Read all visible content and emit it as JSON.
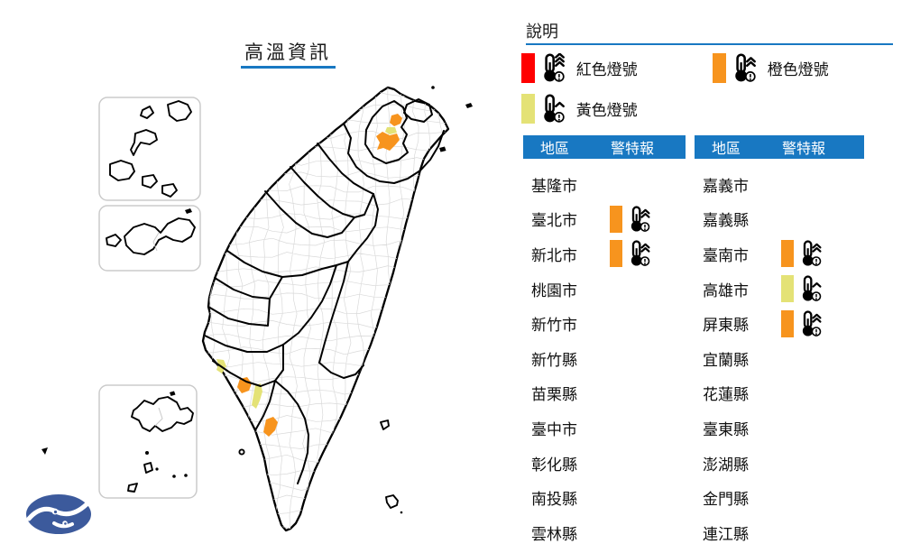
{
  "title": "高溫資訊",
  "colors": {
    "accent": "#1878c2",
    "red": "#ff0000",
    "orange": "#f7941e",
    "yellow": "#e4e276",
    "logo_blue": "#3c5a9c"
  },
  "legend": {
    "title": "說明",
    "items": [
      {
        "id": "red",
        "label": "紅色燈號",
        "color": "#ff0000",
        "level": 3
      },
      {
        "id": "orange",
        "label": "橙色燈號",
        "color": "#f7941e",
        "level": 2
      },
      {
        "id": "yellow",
        "label": "黃色燈號",
        "color": "#e4e276",
        "level": 1
      }
    ]
  },
  "warning_levels": {
    "red": 3,
    "orange": 2,
    "yellow": 1
  },
  "tables": [
    {
      "headers": {
        "region": "地區",
        "warning": "警特報"
      },
      "rows": [
        {
          "region": "基隆市",
          "warning": null
        },
        {
          "region": "臺北市",
          "warning": "orange"
        },
        {
          "region": "新北市",
          "warning": "orange"
        },
        {
          "region": "桃園市",
          "warning": null
        },
        {
          "region": "新竹市",
          "warning": null
        },
        {
          "region": "新竹縣",
          "warning": null
        },
        {
          "region": "苗栗縣",
          "warning": null
        },
        {
          "region": "臺中市",
          "warning": null
        },
        {
          "region": "彰化縣",
          "warning": null
        },
        {
          "region": "南投縣",
          "warning": null
        },
        {
          "region": "雲林縣",
          "warning": null
        }
      ]
    },
    {
      "headers": {
        "region": "地區",
        "warning": "警特報"
      },
      "rows": [
        {
          "region": "嘉義市",
          "warning": null
        },
        {
          "region": "嘉義縣",
          "warning": null
        },
        {
          "region": "臺南市",
          "warning": "orange"
        },
        {
          "region": "高雄市",
          "warning": "yellow"
        },
        {
          "region": "屏東縣",
          "warning": "orange"
        },
        {
          "region": "宜蘭縣",
          "warning": null
        },
        {
          "region": "花蓮縣",
          "warning": null
        },
        {
          "region": "臺東縣",
          "warning": null
        },
        {
          "region": "澎湖縣",
          "warning": null
        },
        {
          "region": "金門縣",
          "warning": null
        },
        {
          "region": "連江縣",
          "warning": null
        }
      ]
    }
  ],
  "map": {
    "patches": [
      {
        "name": "taipei-north-area",
        "warning": "orange"
      },
      {
        "name": "taipei-mid-area",
        "warning": "yellow"
      },
      {
        "name": "taipei-basin-area",
        "warning": "orange"
      },
      {
        "name": "tainan-coast-area",
        "warning": "yellow"
      },
      {
        "name": "tainan-inland-area",
        "warning": "orange"
      },
      {
        "name": "kaohsiung-area",
        "warning": "yellow"
      },
      {
        "name": "pingtung-area",
        "warning": "orange"
      }
    ]
  }
}
